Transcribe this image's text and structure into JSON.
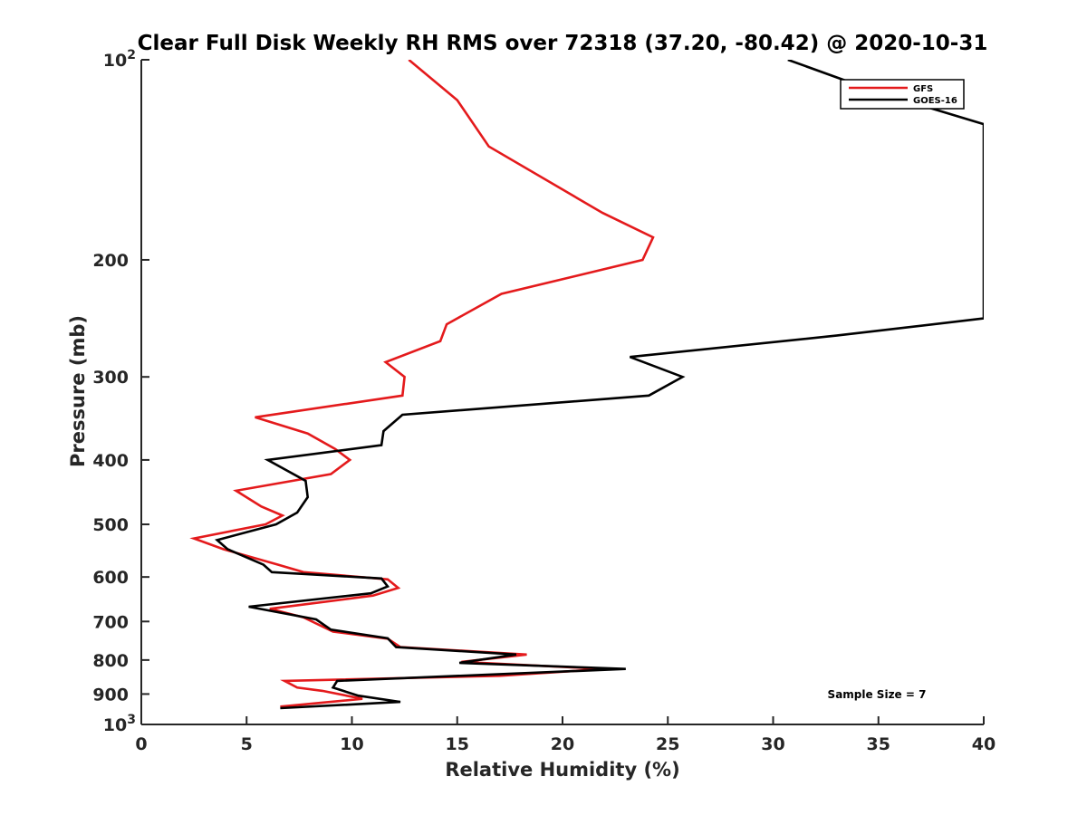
{
  "chart_data": {
    "type": "line",
    "title": "Clear Full Disk Weekly RH RMS over 72318 (37.20, -80.42) @ 2020-10-31",
    "xlabel": "Relative Humidity (%)",
    "ylabel": "Pressure (mb)",
    "xlim": [
      0,
      40
    ],
    "ylim": [
      100,
      1000
    ],
    "yscale": "log",
    "y_reversed": true,
    "x_ticks": [
      "0",
      "5",
      "10",
      "15",
      "20",
      "25",
      "30",
      "35",
      "40"
    ],
    "y_ticks": [
      {
        "value": 100,
        "label": "10",
        "sup": "2"
      },
      {
        "value": 200,
        "label": "200",
        "sup": ""
      },
      {
        "value": 300,
        "label": "300",
        "sup": ""
      },
      {
        "value": 400,
        "label": "400",
        "sup": ""
      },
      {
        "value": 500,
        "label": "500",
        "sup": ""
      },
      {
        "value": 600,
        "label": "600",
        "sup": ""
      },
      {
        "value": 700,
        "label": "700",
        "sup": ""
      },
      {
        "value": 800,
        "label": "800",
        "sup": ""
      },
      {
        "value": 900,
        "label": "900",
        "sup": ""
      },
      {
        "value": 1000,
        "label": "10",
        "sup": "3"
      }
    ],
    "legend_position": "top-right",
    "annotation": "Sample Size = 7",
    "series": [
      {
        "name": "GFS",
        "color": "#e41a1c",
        "points": [
          [
            12.7,
            100
          ],
          [
            15.0,
            115
          ],
          [
            16.5,
            135
          ],
          [
            21.9,
            170
          ],
          [
            24.3,
            185
          ],
          [
            23.8,
            200
          ],
          [
            17.1,
            225
          ],
          [
            14.5,
            250
          ],
          [
            14.2,
            265
          ],
          [
            11.6,
            285
          ],
          [
            12.5,
            300
          ],
          [
            12.4,
            320
          ],
          [
            5.4,
            345
          ],
          [
            7.9,
            365
          ],
          [
            9.2,
            385
          ],
          [
            9.9,
            400
          ],
          [
            9.0,
            420
          ],
          [
            4.5,
            445
          ],
          [
            5.7,
            470
          ],
          [
            6.7,
            485
          ],
          [
            5.9,
            500
          ],
          [
            2.5,
            525
          ],
          [
            3.9,
            545
          ],
          [
            6.5,
            575
          ],
          [
            7.7,
            590
          ],
          [
            11.7,
            605
          ],
          [
            12.2,
            623
          ],
          [
            11.0,
            640
          ],
          [
            6.1,
            670
          ],
          [
            7.7,
            690
          ],
          [
            9.1,
            725
          ],
          [
            11.7,
            743
          ],
          [
            12.3,
            765
          ],
          [
            18.3,
            785
          ],
          [
            15.2,
            805
          ],
          [
            22.0,
            825
          ],
          [
            17.0,
            845
          ],
          [
            6.8,
            860
          ],
          [
            7.4,
            880
          ],
          [
            8.6,
            890
          ],
          [
            10.5,
            915
          ],
          [
            6.6,
            940
          ]
        ]
      },
      {
        "name": "GOES-16",
        "color": "#000000",
        "points": [
          [
            30.7,
            100
          ],
          [
            35.0,
            112
          ],
          [
            40.0,
            125
          ],
          [
            40.0,
            245
          ],
          [
            33.0,
            260
          ],
          [
            23.2,
            280
          ],
          [
            25.7,
            300
          ],
          [
            24.1,
            320
          ],
          [
            12.4,
            342
          ],
          [
            11.5,
            362
          ],
          [
            11.4,
            380
          ],
          [
            6.0,
            400
          ],
          [
            7.8,
            430
          ],
          [
            7.9,
            455
          ],
          [
            7.4,
            480
          ],
          [
            6.4,
            500
          ],
          [
            3.6,
            528
          ],
          [
            4.1,
            545
          ],
          [
            5.8,
            575
          ],
          [
            6.2,
            590
          ],
          [
            11.4,
            603
          ],
          [
            11.7,
            620
          ],
          [
            10.9,
            635
          ],
          [
            5.1,
            665
          ],
          [
            8.3,
            695
          ],
          [
            9.0,
            720
          ],
          [
            11.7,
            742
          ],
          [
            12.1,
            765
          ],
          [
            17.8,
            785
          ],
          [
            15.1,
            808
          ],
          [
            23.0,
            825
          ],
          [
            9.3,
            860
          ],
          [
            9.1,
            880
          ],
          [
            10.3,
            905
          ],
          [
            12.3,
            925
          ],
          [
            6.6,
            945
          ]
        ]
      }
    ]
  }
}
